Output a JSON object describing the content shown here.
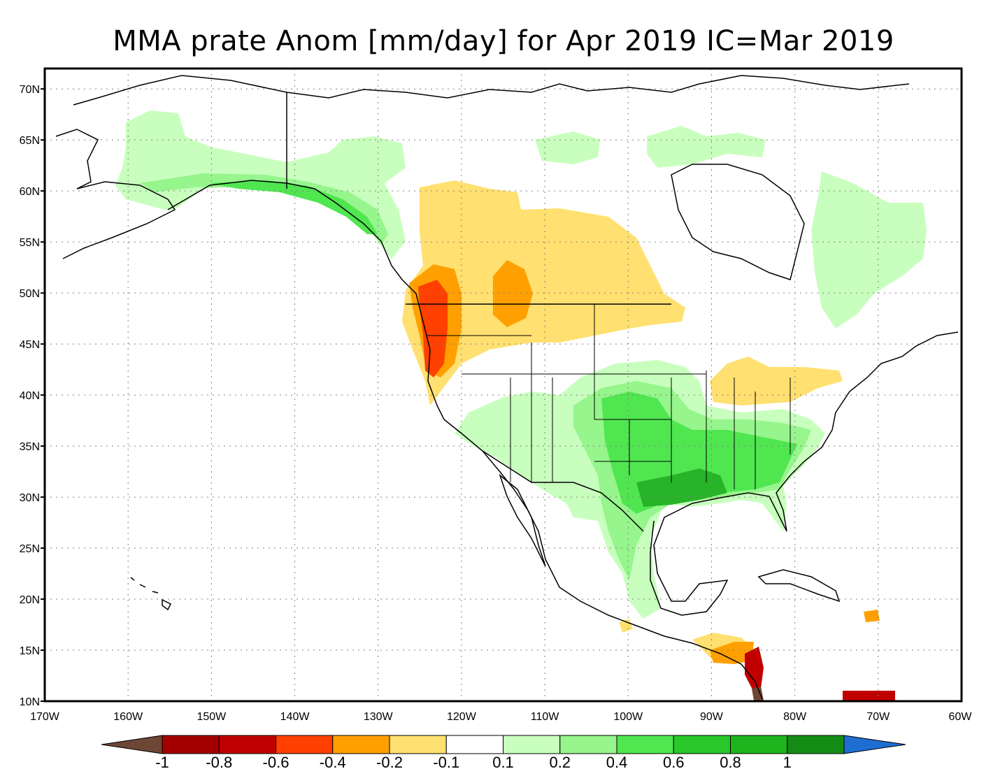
{
  "title": "MMA prate Anom [mm/day] for Apr 2019 IC=Mar 2019",
  "map": {
    "extent": {
      "lon": [
        -170,
        -60
      ],
      "lat": [
        10,
        72
      ]
    },
    "lat_labels": [
      "70N",
      "65N",
      "60N",
      "55N",
      "50N",
      "45N",
      "40N",
      "35N",
      "30N",
      "25N",
      "20N",
      "15N",
      "10N"
    ],
    "lat_values": [
      70,
      65,
      60,
      55,
      50,
      45,
      40,
      35,
      30,
      25,
      20,
      15,
      10
    ],
    "lon_labels": [
      "170W",
      "160W",
      "150W",
      "140W",
      "130W",
      "120W",
      "110W",
      "100W",
      "90W",
      "80W",
      "70W",
      "60W"
    ],
    "lon_values": [
      -170,
      -160,
      -150,
      -140,
      -130,
      -120,
      -110,
      -100,
      -90,
      -80,
      -70,
      -60
    ]
  },
  "colorbar": {
    "labels": [
      "-1",
      "-0.8",
      "-0.6",
      "-0.4",
      "-0.2",
      "-0.1",
      "0.1",
      "0.2",
      "0.4",
      "0.6",
      "0.8",
      "1"
    ],
    "colors": [
      "#6e4636",
      "#a50000",
      "#c00000",
      "#ff4000",
      "#ffa000",
      "#ffe070",
      "#ffffff",
      "#c8ffbe",
      "#96f58c",
      "#50e650",
      "#28c828",
      "#1eb41e",
      "#148c14",
      "#1e6ed2"
    ]
  },
  "colors": {
    "strong_dry": "#ff4000",
    "dry": "#ffa000",
    "light_dry": "#ffe070",
    "light_wet": "#c8ffbe",
    "wet": "#96f58c",
    "wetter": "#50e650",
    "wettest": "#28b428",
    "extreme_dry": "#c00000",
    "brown": "#6e4636"
  }
}
